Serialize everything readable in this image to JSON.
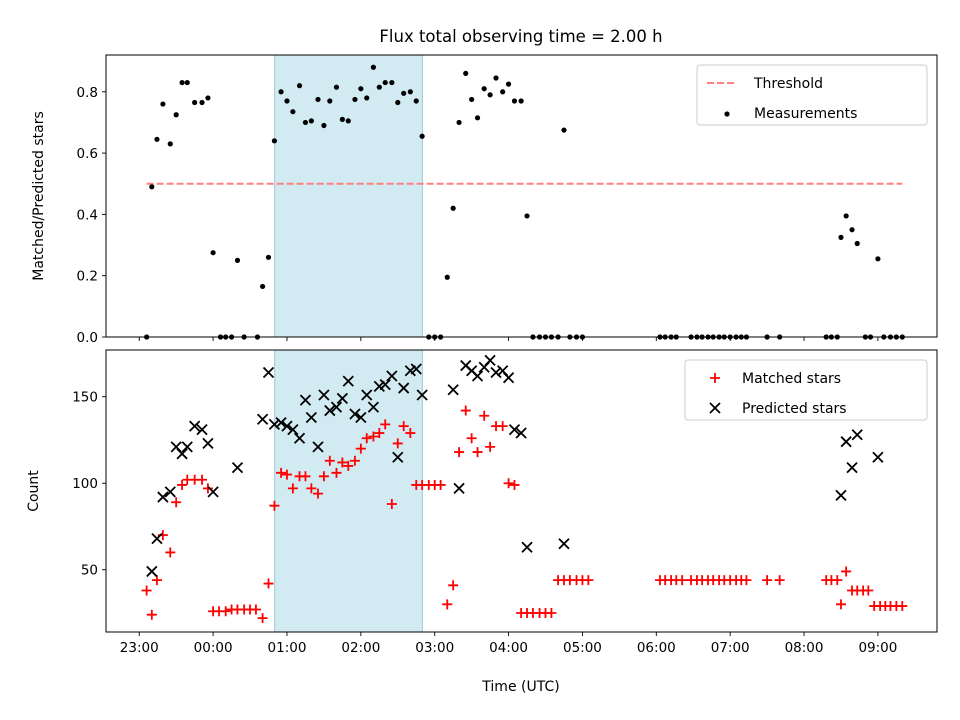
{
  "figure": {
    "title": "Flux total observing time = 2.00 h",
    "xlabel": "Time (UTC)",
    "xticks": [
      "23:00",
      "00:00",
      "01:00",
      "02:00",
      "03:00",
      "04:00",
      "05:00",
      "06:00",
      "07:00",
      "08:00",
      "09:00"
    ],
    "shade_color": "#add8e6"
  },
  "chart_data": [
    {
      "type": "scatter",
      "panel": "top",
      "title": "Flux total observing time = 2.00 h",
      "xlabel": "",
      "ylabel": "Matched/Predicted stars",
      "x_unit": "hours relative to 00:00 UTC",
      "xlim": [
        -1.45,
        9.8
      ],
      "ylim": [
        0.0,
        0.92
      ],
      "yticks": [
        0.0,
        0.2,
        0.4,
        0.6,
        0.8
      ],
      "yticklabels": [
        "0.0",
        "0.2",
        "0.4",
        "0.6",
        "0.8"
      ],
      "shaded_interval": [
        "00:50",
        "02:50"
      ],
      "legend": "upper right",
      "series": [
        {
          "name": "Threshold",
          "style": "dashed-line",
          "color": "#ff8080",
          "x": [
            -0.9,
            9.33
          ],
          "y": [
            0.5,
            0.5
          ]
        },
        {
          "name": "Measurements",
          "style": "dot",
          "color": "#000000",
          "x": [
            -0.9,
            -0.83,
            -0.76,
            -0.68,
            -0.58,
            -0.5,
            -0.42,
            -0.35,
            -0.25,
            -0.15,
            -0.07,
            0.0,
            0.1,
            0.17,
            0.25,
            0.33,
            0.42,
            0.6,
            0.67,
            0.75,
            0.83,
            0.92,
            1.0,
            1.08,
            1.17,
            1.25,
            1.33,
            1.42,
            1.5,
            1.58,
            1.67,
            1.75,
            1.83,
            1.92,
            2.0,
            2.08,
            2.17,
            2.25,
            2.33,
            2.42,
            2.5,
            2.58,
            2.67,
            2.75,
            2.83,
            2.92,
            3.0,
            3.08,
            3.17,
            3.25,
            3.33,
            3.42,
            3.5,
            3.58,
            3.67,
            3.75,
            3.83,
            3.92,
            4.0,
            4.08,
            4.17,
            4.25,
            4.33,
            4.42,
            4.5,
            4.58,
            4.67,
            4.75,
            4.83,
            4.92,
            5.0,
            6.05,
            6.12,
            6.2,
            6.27,
            6.47,
            6.55,
            6.62,
            6.7,
            6.77,
            6.85,
            6.92,
            7.0,
            7.08,
            7.15,
            7.22,
            7.5,
            7.67,
            8.3,
            8.37,
            8.45,
            8.5,
            8.57,
            8.65,
            8.72,
            8.83,
            8.9,
            9.0,
            9.08,
            9.17,
            9.25,
            9.33
          ],
          "y": [
            0.0,
            0.49,
            0.645,
            0.76,
            0.63,
            0.725,
            0.83,
            0.83,
            0.765,
            0.765,
            0.78,
            0.275,
            0.0,
            0.0,
            0.0,
            0.25,
            0.0,
            0.0,
            0.165,
            0.26,
            0.64,
            0.8,
            0.77,
            0.735,
            0.82,
            0.7,
            0.705,
            0.775,
            0.69,
            0.77,
            0.815,
            0.71,
            0.705,
            0.775,
            0.81,
            0.78,
            0.88,
            0.815,
            0.83,
            0.83,
            0.765,
            0.795,
            0.8,
            0.77,
            0.655,
            0.0,
            0.0,
            0.0,
            0.195,
            0.42,
            0.7,
            0.86,
            0.775,
            0.715,
            0.81,
            0.79,
            0.845,
            0.8,
            0.825,
            0.77,
            0.77,
            0.395,
            0.0,
            0.0,
            0.0,
            0.0,
            0.0,
            0.675,
            0.0,
            0.0,
            0.0,
            0.0,
            0.0,
            0.0,
            0.0,
            0.0,
            0.0,
            0.0,
            0.0,
            0.0,
            0.0,
            0.0,
            0.0,
            0.0,
            0.0,
            0.0,
            0.0,
            0.0,
            0.0,
            0.0,
            0.0,
            0.325,
            0.395,
            0.35,
            0.305,
            0.0,
            0.0,
            0.255,
            0.0,
            0.0,
            0.0,
            0.0
          ]
        }
      ]
    },
    {
      "type": "scatter",
      "panel": "bottom",
      "title": "",
      "xlabel": "Time (UTC)",
      "ylabel": "Count",
      "x_unit": "hours relative to 00:00 UTC",
      "xlim": [
        -1.45,
        9.8
      ],
      "ylim": [
        14,
        177
      ],
      "yticks": [
        50,
        100,
        150
      ],
      "yticklabels": [
        "50",
        "100",
        "150"
      ],
      "shaded_interval": [
        "00:50",
        "02:50"
      ],
      "legend": "upper right",
      "series": [
        {
          "name": "Matched stars",
          "marker": "plus",
          "color": "#ff0000",
          "x": [
            -0.9,
            -0.83,
            -0.76,
            -0.68,
            -0.58,
            -0.5,
            -0.42,
            -0.35,
            -0.25,
            -0.15,
            -0.07,
            0.0,
            0.08,
            0.17,
            0.25,
            0.33,
            0.42,
            0.5,
            0.58,
            0.67,
            0.75,
            0.83,
            0.92,
            1.0,
            1.08,
            1.17,
            1.25,
            1.33,
            1.42,
            1.5,
            1.58,
            1.67,
            1.75,
            1.83,
            1.92,
            2.0,
            2.08,
            2.17,
            2.25,
            2.33,
            2.42,
            2.5,
            2.58,
            2.67,
            2.75,
            2.83,
            2.92,
            3.0,
            3.08,
            3.17,
            3.25,
            3.33,
            3.42,
            3.5,
            3.58,
            3.67,
            3.75,
            3.83,
            3.92,
            4.0,
            4.08,
            4.17,
            4.25,
            4.33,
            4.42,
            4.5,
            4.58,
            4.67,
            4.75,
            4.83,
            4.92,
            5.0,
            5.08,
            6.05,
            6.12,
            6.2,
            6.27,
            6.35,
            6.47,
            6.55,
            6.62,
            6.7,
            6.77,
            6.85,
            6.92,
            7.0,
            7.08,
            7.15,
            7.22,
            7.5,
            7.67,
            8.3,
            8.37,
            8.45,
            8.5,
            8.57,
            8.65,
            8.72,
            8.8,
            8.87,
            8.95,
            9.03,
            9.1,
            9.17,
            9.25,
            9.33
          ],
          "y": [
            38,
            24,
            44,
            70,
            60,
            89,
            99,
            102,
            102,
            102,
            97,
            26,
            26,
            26,
            27,
            27,
            27,
            27,
            27,
            22,
            42,
            87,
            106,
            105,
            97,
            104,
            104,
            97,
            94,
            104,
            113,
            106,
            112,
            110,
            113,
            120,
            126,
            127,
            129,
            134,
            88,
            123,
            133,
            129,
            99,
            99,
            99,
            99,
            99,
            30,
            41,
            118,
            142,
            126,
            118,
            139,
            121,
            133,
            133,
            100,
            99,
            25,
            25,
            25,
            25,
            25,
            25,
            44,
            44,
            44,
            44,
            44,
            44,
            44,
            44,
            44,
            44,
            44,
            44,
            44,
            44,
            44,
            44,
            44,
            44,
            44,
            44,
            44,
            44,
            44,
            44,
            44,
            44,
            44,
            30,
            49,
            38,
            38,
            38,
            38,
            29,
            29,
            29,
            29,
            29,
            29
          ]
        },
        {
          "name": "Predicted stars",
          "marker": "x",
          "color": "#000000",
          "x": [
            -0.83,
            -0.76,
            -0.68,
            -0.58,
            -0.5,
            -0.42,
            -0.35,
            -0.25,
            -0.15,
            -0.07,
            0.0,
            0.33,
            0.67,
            0.75,
            0.83,
            0.92,
            1.0,
            1.08,
            1.17,
            1.25,
            1.33,
            1.42,
            1.5,
            1.58,
            1.67,
            1.75,
            1.83,
            1.92,
            2.0,
            2.08,
            2.17,
            2.25,
            2.33,
            2.42,
            2.5,
            2.58,
            2.67,
            2.75,
            2.83,
            3.25,
            3.33,
            3.42,
            3.5,
            3.58,
            3.67,
            3.75,
            3.83,
            3.92,
            4.0,
            4.08,
            4.17,
            4.25,
            4.75,
            8.5,
            8.57,
            8.65,
            8.72,
            9.0
          ],
          "y": [
            49,
            68,
            92,
            95,
            121,
            117,
            121,
            133,
            131,
            123,
            95,
            109,
            137,
            164,
            134,
            135,
            133,
            131,
            126,
            148,
            138,
            121,
            151,
            142,
            144,
            149,
            159,
            140,
            138,
            151,
            144,
            156,
            157,
            162,
            115,
            155,
            165,
            166,
            151,
            154,
            97,
            168,
            165,
            162,
            167,
            171,
            164,
            165,
            161,
            131,
            129,
            63,
            65,
            93,
            124,
            109,
            128,
            115
          ]
        }
      ]
    }
  ]
}
